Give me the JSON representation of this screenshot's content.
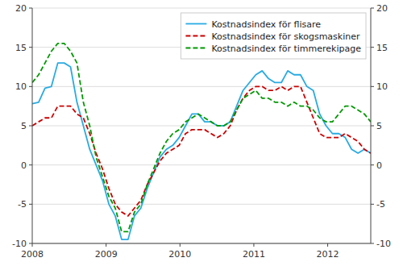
{
  "chart_data": {
    "type": "line",
    "x": [
      2008,
      2008.0865,
      2008.1729,
      2008.2594,
      2008.3459,
      2008.4324,
      2008.5188,
      2008.6053,
      2008.6918,
      2008.7782,
      2008.8647,
      2008.9512,
      2009.0377,
      2009.1241,
      2009.2106,
      2009.2971,
      2009.3835,
      2009.47,
      2009.5565,
      2009.643,
      2009.7294,
      2009.8159,
      2009.9024,
      2009.9888,
      2010.0753,
      2010.1618,
      2010.2483,
      2010.3347,
      2010.4212,
      2010.5077,
      2010.5942,
      2010.6806,
      2010.7671,
      2010.8536,
      2010.94,
      2011.0265,
      2011.113,
      2011.1995,
      2011.2859,
      2011.3724,
      2011.4589,
      2011.5453,
      2011.6318,
      2011.7183,
      2011.8048,
      2011.8912,
      2011.9777,
      2012.0642,
      2012.1506,
      2012.2371,
      2012.3236,
      2012.4101,
      2012.4965,
      2012.583
    ],
    "xlim": [
      2008,
      2012.583
    ],
    "xticks": [
      2008,
      2009,
      2010,
      2011,
      2012
    ],
    "ylim": [
      -10,
      20
    ],
    "yticks": [
      -10,
      -5,
      0,
      5,
      10,
      15,
      20
    ],
    "y2lim": [
      -10,
      20
    ],
    "y2ticks": [
      -10,
      -5,
      0,
      5,
      10,
      15,
      20
    ],
    "grid": true,
    "legend": "upper right",
    "series": [
      {
        "name": "Kostnadsindex för flisare",
        "color": "#29ABE2",
        "line_style": "solid",
        "values": [
          7.8,
          8.0,
          9.8,
          10.0,
          13.0,
          13.0,
          12.5,
          8.0,
          5.0,
          2.0,
          0.0,
          -2.0,
          -5.0,
          -6.5,
          -9.5,
          -9.5,
          -6.5,
          -5.5,
          -3.0,
          -1.0,
          1.0,
          2.0,
          2.5,
          3.5,
          5.0,
          6.5,
          6.5,
          5.5,
          5.5,
          5.0,
          5.0,
          5.5,
          7.5,
          9.5,
          10.5,
          11.5,
          12.0,
          11.0,
          10.5,
          10.5,
          12.0,
          11.5,
          11.5,
          10.0,
          9.5,
          6.5,
          5.0,
          4.0,
          4.0,
          3.5,
          2.0,
          1.5,
          2.0,
          1.5
        ]
      },
      {
        "name": "Kostnadsindex för skogsmaskiner",
        "color": "#CC0000",
        "line_style": "dashed",
        "values": [
          5.0,
          5.5,
          6.0,
          6.0,
          7.5,
          7.5,
          7.5,
          6.5,
          6.0,
          4.0,
          1.5,
          -0.5,
          -3.0,
          -5.0,
          -6.0,
          -6.5,
          -5.5,
          -4.5,
          -2.5,
          -1.0,
          0.5,
          1.5,
          2.0,
          2.5,
          4.0,
          4.5,
          4.5,
          4.5,
          4.0,
          3.5,
          4.0,
          5.0,
          7.0,
          8.5,
          9.5,
          10.0,
          10.0,
          9.5,
          9.5,
          10.0,
          9.5,
          10.0,
          10.0,
          8.0,
          6.0,
          4.0,
          3.5,
          3.5,
          3.5,
          4.0,
          3.5,
          3.0,
          2.0,
          1.5
        ]
      },
      {
        "name": "Kostnadsindex för timmerekipage",
        "color": "#009900",
        "line_style": "dashed",
        "values": [
          10.5,
          11.5,
          13.0,
          14.5,
          15.5,
          15.5,
          14.5,
          13.0,
          8.0,
          5.0,
          1.0,
          -1.5,
          -4.0,
          -5.5,
          -8.5,
          -8.5,
          -6.0,
          -5.0,
          -2.5,
          -0.5,
          1.5,
          3.0,
          4.0,
          4.5,
          5.5,
          6.0,
          6.5,
          6.0,
          5.5,
          5.0,
          5.0,
          5.5,
          7.0,
          8.5,
          9.0,
          9.5,
          8.5,
          8.5,
          8.0,
          8.0,
          7.5,
          8.0,
          7.5,
          7.5,
          7.0,
          6.0,
          5.5,
          5.5,
          6.5,
          7.5,
          7.5,
          7.0,
          6.5,
          5.5
        ]
      }
    ]
  }
}
